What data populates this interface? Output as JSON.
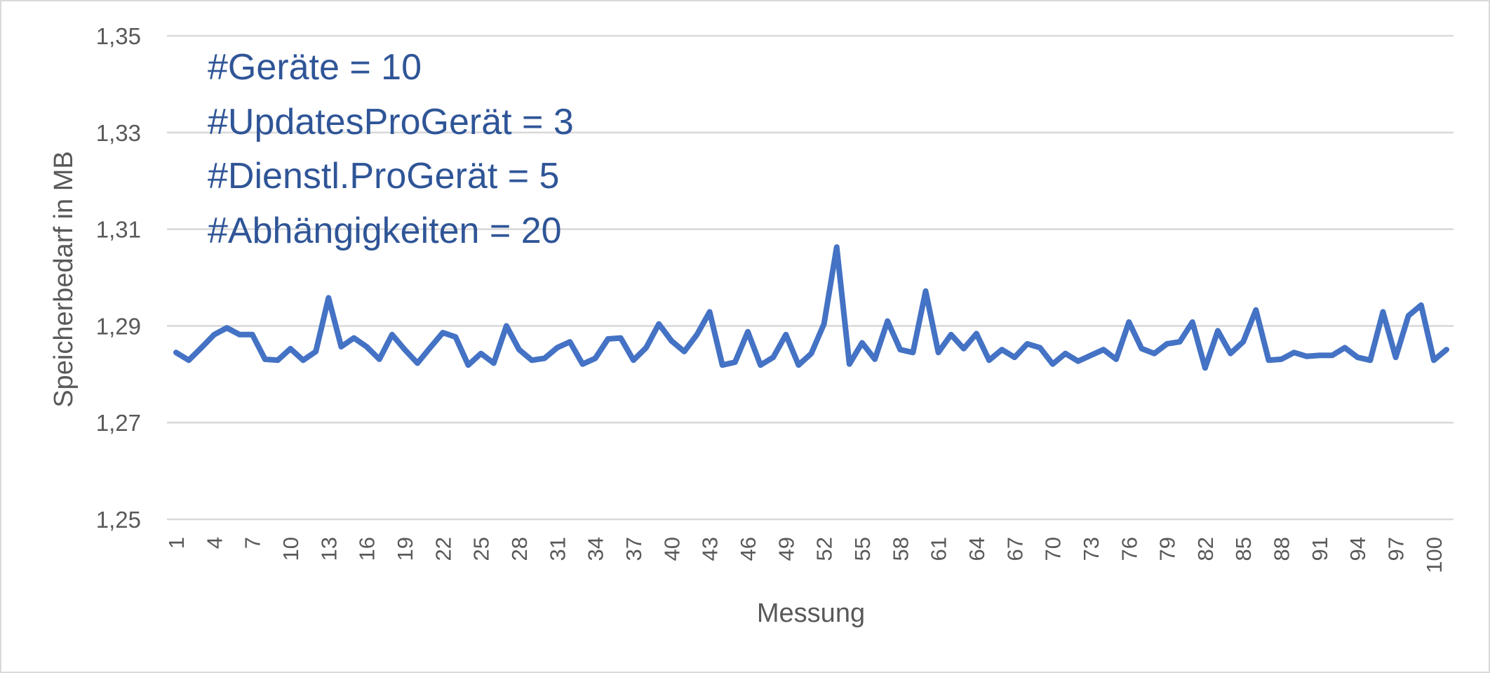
{
  "chart_data": {
    "type": "line",
    "title": "",
    "xlabel": "Messung",
    "ylabel": "Speicherbedarf in MB",
    "ylim": [
      1.25,
      1.35
    ],
    "yticks": [
      "1,35",
      "1,33",
      "1,31",
      "1,29",
      "1,27",
      "1,25"
    ],
    "ytick_values": [
      1.35,
      1.33,
      1.31,
      1.29,
      1.27,
      1.25
    ],
    "xlim": [
      1,
      100
    ],
    "xtick_labels": [
      1,
      4,
      7,
      10,
      13,
      16,
      19,
      22,
      25,
      28,
      31,
      34,
      37,
      40,
      43,
      46,
      49,
      52,
      55,
      58,
      61,
      64,
      67,
      70,
      73,
      76,
      79,
      82,
      85,
      88,
      91,
      94,
      97,
      100
    ],
    "grid": true,
    "legend": "none",
    "annotations": [
      "#Geräte = 10",
      "#UpdatesProGerät = 3",
      "#Dienstl.ProGerät = 5",
      "#Abhängigkeiten = 20"
    ],
    "series": [
      {
        "color": "#4472c4",
        "x": [
          1,
          2,
          3,
          4,
          5,
          6,
          7,
          8,
          9,
          10,
          11,
          12,
          13,
          14,
          15,
          16,
          17,
          18,
          19,
          20,
          21,
          22,
          23,
          24,
          25,
          26,
          27,
          28,
          29,
          30,
          31,
          32,
          33,
          34,
          35,
          36,
          37,
          38,
          39,
          40,
          41,
          42,
          43,
          44,
          45,
          46,
          47,
          48,
          49,
          50,
          51,
          52,
          53,
          54,
          55,
          56,
          57,
          58,
          59,
          60,
          61,
          62,
          63,
          64,
          65,
          66,
          67,
          68,
          69,
          70,
          71,
          72,
          73,
          74,
          75,
          76,
          77,
          78,
          79,
          80,
          81,
          82,
          83,
          84,
          85,
          86,
          87,
          88,
          89,
          90,
          91,
          92,
          93,
          94,
          95,
          96,
          97,
          98,
          99,
          100,
          101
        ],
        "values": [
          1.2845,
          1.2829,
          1.2855,
          1.2882,
          1.2896,
          1.2882,
          1.2882,
          1.2831,
          1.2829,
          1.2853,
          1.2829,
          1.2847,
          1.2958,
          1.2857,
          1.2875,
          1.2857,
          1.2831,
          1.2882,
          1.2851,
          1.2823,
          1.2855,
          1.2886,
          1.2877,
          1.2819,
          1.2843,
          1.2823,
          1.29,
          1.2851,
          1.2829,
          1.2833,
          1.2855,
          1.2867,
          1.2821,
          1.2833,
          1.2873,
          1.2875,
          1.2829,
          1.2855,
          1.2904,
          1.2869,
          1.2847,
          1.2882,
          1.2929,
          1.2819,
          1.2825,
          1.2888,
          1.2819,
          1.2835,
          1.2882,
          1.2819,
          1.2843,
          1.2904,
          1.3063,
          1.2821,
          1.2865,
          1.2831,
          1.291,
          1.2851,
          1.2845,
          1.2972,
          1.2845,
          1.2882,
          1.2853,
          1.2884,
          1.2829,
          1.2851,
          1.2835,
          1.2863,
          1.2855,
          1.2821,
          1.2843,
          1.2827,
          1.2839,
          1.2851,
          1.2831,
          1.2908,
          1.2853,
          1.2843,
          1.2863,
          1.2867,
          1.2908,
          1.2813,
          1.289,
          1.2843,
          1.2867,
          1.2933,
          1.2829,
          1.2831,
          1.2845,
          1.2837,
          1.2839,
          1.2839,
          1.2855,
          1.2835,
          1.2829,
          1.2929,
          1.2835,
          1.2921,
          1.2943,
          1.2829,
          1.2851
        ]
      }
    ]
  }
}
